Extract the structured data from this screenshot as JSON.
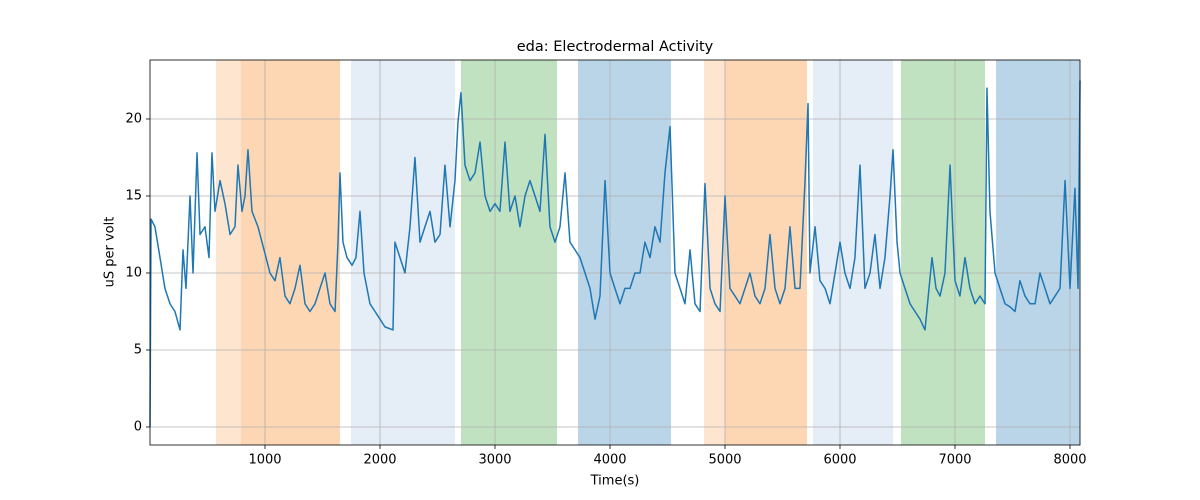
{
  "chart_data": {
    "type": "line",
    "title": "eda: Electrodermal Activity",
    "x_label": "Time(s)",
    "y_label": "uS per volt",
    "color": "#1f77b4",
    "grid": true,
    "xlim": [
      0,
      8087
    ],
    "ylim": [
      -1.17,
      23.83
    ],
    "xticks": [
      1000,
      2000,
      3000,
      4000,
      5000,
      6000,
      7000,
      8000
    ],
    "yticks": [
      0,
      5,
      10,
      15,
      20
    ],
    "spans": [
      {
        "start": 574,
        "end": 791,
        "color": "#fee5cf"
      },
      {
        "start": 791,
        "end": 1652,
        "color": "#fdd7b4"
      },
      {
        "start": 1748,
        "end": 2652,
        "color": "#e5edf7"
      },
      {
        "start": 2704,
        "end": 3539,
        "color": "#c0e2c0"
      },
      {
        "start": 3722,
        "end": 4530,
        "color": "#bad4e8"
      },
      {
        "start": 4817,
        "end": 5000,
        "color": "#fee5cf"
      },
      {
        "start": 5000,
        "end": 5713,
        "color": "#fdd7b4"
      },
      {
        "start": 5765,
        "end": 6461,
        "color": "#e5edf7"
      },
      {
        "start": 6530,
        "end": 7261,
        "color": "#c0e2c0"
      },
      {
        "start": 7357,
        "end": 8087,
        "color": "#bad4e8"
      }
    ],
    "x": [
      0,
      9,
      43,
      87,
      130,
      174,
      217,
      261,
      287,
      313,
      348,
      374,
      409,
      435,
      478,
      513,
      539,
      565,
      609,
      652,
      696,
      739,
      765,
      800,
      826,
      852,
      887,
      939,
      974,
      1009,
      1043,
      1087,
      1130,
      1174,
      1217,
      1261,
      1304,
      1348,
      1391,
      1435,
      1478,
      1522,
      1565,
      1609,
      1635,
      1652,
      1678,
      1713,
      1757,
      1791,
      1826,
      1861,
      1913,
      1957,
      2000,
      2043,
      2113,
      2130,
      2174,
      2217,
      2261,
      2304,
      2348,
      2391,
      2435,
      2478,
      2522,
      2565,
      2609,
      2652,
      2678,
      2704,
      2739,
      2783,
      2826,
      2870,
      2913,
      2957,
      3000,
      3043,
      3087,
      3130,
      3174,
      3217,
      3261,
      3304,
      3348,
      3391,
      3435,
      3478,
      3522,
      3565,
      3609,
      3652,
      3696,
      3739,
      3783,
      3826,
      3870,
      3913,
      3957,
      4000,
      4043,
      4087,
      4130,
      4174,
      4217,
      4261,
      4304,
      4348,
      4391,
      4435,
      4478,
      4522,
      4565,
      4609,
      4652,
      4696,
      4739,
      4783,
      4826,
      4870,
      4913,
      4957,
      5000,
      5043,
      5087,
      5130,
      5174,
      5217,
      5261,
      5304,
      5348,
      5391,
      5435,
      5478,
      5522,
      5565,
      5609,
      5652,
      5696,
      5722,
      5739,
      5783,
      5826,
      5870,
      5913,
      5957,
      6000,
      6043,
      6087,
      6130,
      6174,
      6217,
      6261,
      6304,
      6348,
      6391,
      6435,
      6461,
      6496,
      6522,
      6565,
      6609,
      6652,
      6696,
      6739,
      6800,
      6835,
      6870,
      6913,
      6957,
      7000,
      7043,
      7087,
      7130,
      7174,
      7217,
      7261,
      7278,
      7304,
      7348,
      7391,
      7435,
      7478,
      7522,
      7565,
      7609,
      7652,
      7696,
      7739,
      7783,
      7826,
      7870,
      7913,
      7957,
      8000,
      8043,
      8070,
      8087
    ],
    "values": [
      0,
      13.5,
      13,
      11,
      9,
      8,
      7.5,
      6.3,
      11.5,
      9,
      15,
      10,
      17.8,
      12.5,
      13,
      11,
      17.8,
      14,
      16,
      14.5,
      12.5,
      13,
      17,
      14,
      15,
      18,
      14,
      13,
      12,
      11,
      10,
      9.5,
      11,
      8.5,
      8,
      9,
      10.5,
      8,
      7.5,
      8,
      9,
      10,
      8,
      7.5,
      12,
      16.5,
      12,
      11,
      10.5,
      11,
      14,
      10,
      8,
      7.5,
      7,
      6.5,
      6.3,
      12,
      11,
      10,
      13,
      17.5,
      12,
      13,
      14,
      12,
      12.5,
      17,
      13,
      16,
      19.8,
      21.7,
      17,
      16,
      16.5,
      18.5,
      15,
      14,
      14.5,
      14,
      18.5,
      14,
      15,
      13,
      15,
      16,
      15,
      14,
      19,
      13,
      12,
      13,
      16.5,
      12,
      11.5,
      11,
      10,
      9,
      7,
      8.5,
      16,
      10,
      9,
      8,
      9,
      9,
      10,
      10,
      12,
      11,
      13,
      12,
      16.5,
      19.5,
      10,
      9,
      8,
      11.5,
      8,
      7.5,
      15.8,
      9,
      8,
      7.5,
      15,
      9,
      8.5,
      8,
      9,
      10,
      8.5,
      8,
      9,
      12.5,
      9,
      8,
      9,
      13,
      9,
      9,
      16,
      21,
      10,
      13,
      9.5,
      9,
      8,
      10,
      12,
      10,
      9,
      11,
      17,
      9,
      10,
      12.5,
      9,
      11,
      15,
      18,
      12,
      10,
      9,
      8,
      7.5,
      7,
      6.3,
      11,
      9,
      8.5,
      10,
      17,
      9.5,
      8.5,
      11,
      9,
      8,
      8.5,
      8,
      22,
      14,
      10,
      9,
      8,
      7.8,
      7.5,
      9.5,
      8.5,
      8,
      8,
      10,
      9,
      8,
      8.5,
      9,
      16,
      9,
      15.5,
      9,
      22.5
    ]
  }
}
